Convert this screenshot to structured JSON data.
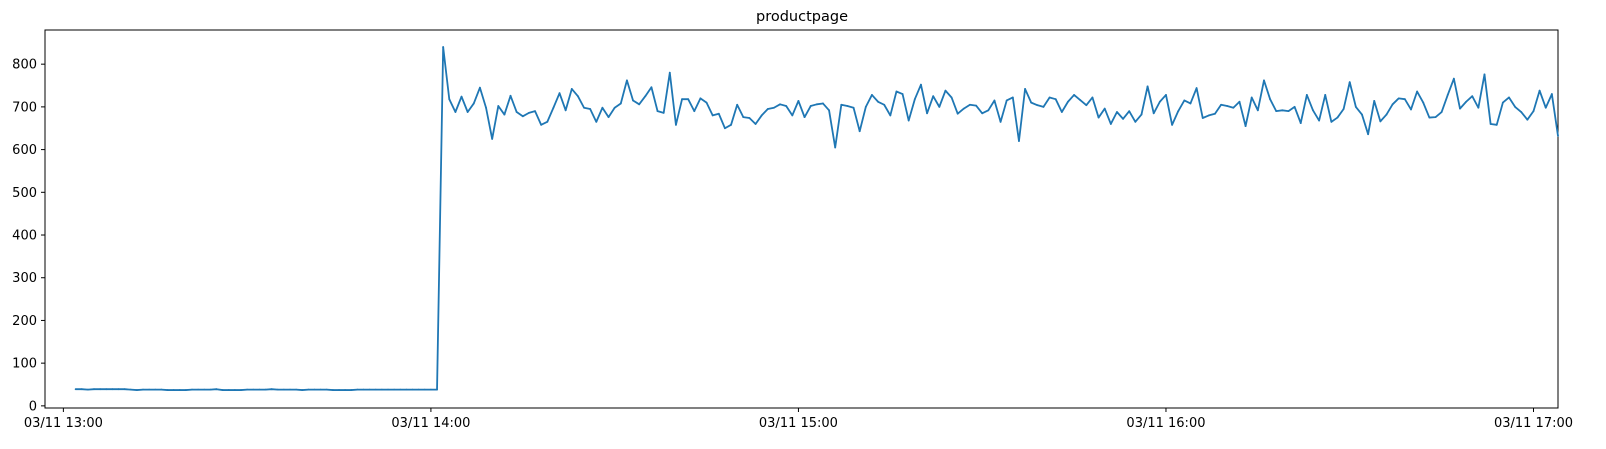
{
  "chart_data": {
    "type": "line",
    "title": "productpage",
    "xlabel": "",
    "ylabel": "",
    "x_start": "03/11 13:02",
    "x_interval_minutes": 1,
    "xlim": [
      "03/11 12:57",
      "03/11 17:04"
    ],
    "ylim": [
      -5,
      880
    ],
    "xticks": [
      {
        "label": "03/11 13:00",
        "value": "03/11 13:00"
      },
      {
        "label": "03/11 14:00",
        "value": "03/11 14:00"
      },
      {
        "label": "03/11 15:00",
        "value": "03/11 15:00"
      },
      {
        "label": "03/11 16:00",
        "value": "03/11 16:00"
      },
      {
        "label": "03/11 17:00",
        "value": "03/11 17:00"
      }
    ],
    "yticks": [
      0,
      100,
      200,
      300,
      400,
      500,
      600,
      700,
      800
    ],
    "grid": false,
    "legend": "none",
    "series": [
      {
        "color": "#1f77b4",
        "values": [
          39,
          39,
          38,
          39,
          39,
          39,
          39,
          39,
          39,
          38,
          37,
          38,
          38,
          38,
          38,
          37,
          37,
          37,
          37,
          38,
          38,
          38,
          38,
          39,
          37,
          37,
          37,
          37,
          38,
          38,
          38,
          38,
          39,
          38,
          38,
          38,
          38,
          37,
          38,
          38,
          38,
          38,
          37,
          37,
          37,
          37,
          38,
          38,
          38,
          38,
          38,
          38,
          38,
          38,
          38,
          38,
          38,
          38,
          38,
          38,
          840,
          718,
          688,
          724,
          688,
          708,
          745,
          698,
          625,
          702,
          682,
          726,
          688,
          678,
          686,
          690,
          658,
          665,
          698,
          732,
          692,
          742,
          725,
          698,
          695,
          665,
          698,
          676,
          698,
          708,
          762,
          715,
          706,
          725,
          746,
          690,
          686,
          780,
          658,
          718,
          718,
          690,
          720,
          710,
          680,
          684,
          650,
          658,
          705,
          676,
          674,
          660,
          680,
          695,
          698,
          706,
          702,
          680,
          714,
          676,
          702,
          706,
          708,
          692,
          605,
          705,
          702,
          698,
          643,
          700,
          728,
          712,
          705,
          680,
          736,
          730,
          668,
          718,
          752,
          685,
          725,
          700,
          738,
          722,
          684,
          696,
          705,
          703,
          685,
          692,
          715,
          665,
          715,
          722,
          620,
          742,
          710,
          704,
          700,
          722,
          718,
          688,
          712,
          728,
          716,
          704,
          722,
          675,
          696,
          660,
          688,
          672,
          690,
          665,
          682,
          748,
          685,
          712,
          728,
          658,
          690,
          715,
          708,
          744,
          674,
          680,
          684,
          705,
          702,
          698,
          712,
          655,
          722,
          692,
          762,
          718,
          690,
          692,
          690,
          700,
          662,
          728,
          692,
          668,
          728,
          665,
          675,
          695,
          758,
          700,
          682,
          636,
          714,
          666,
          682,
          706,
          720,
          718,
          694,
          736,
          710,
          675,
          676,
          688,
          728,
          766,
          696,
          712,
          725,
          698,
          776,
          660,
          658,
          710,
          722,
          700,
          688,
          670,
          690,
          738,
          698,
          730,
          632
        ]
      }
    ]
  }
}
